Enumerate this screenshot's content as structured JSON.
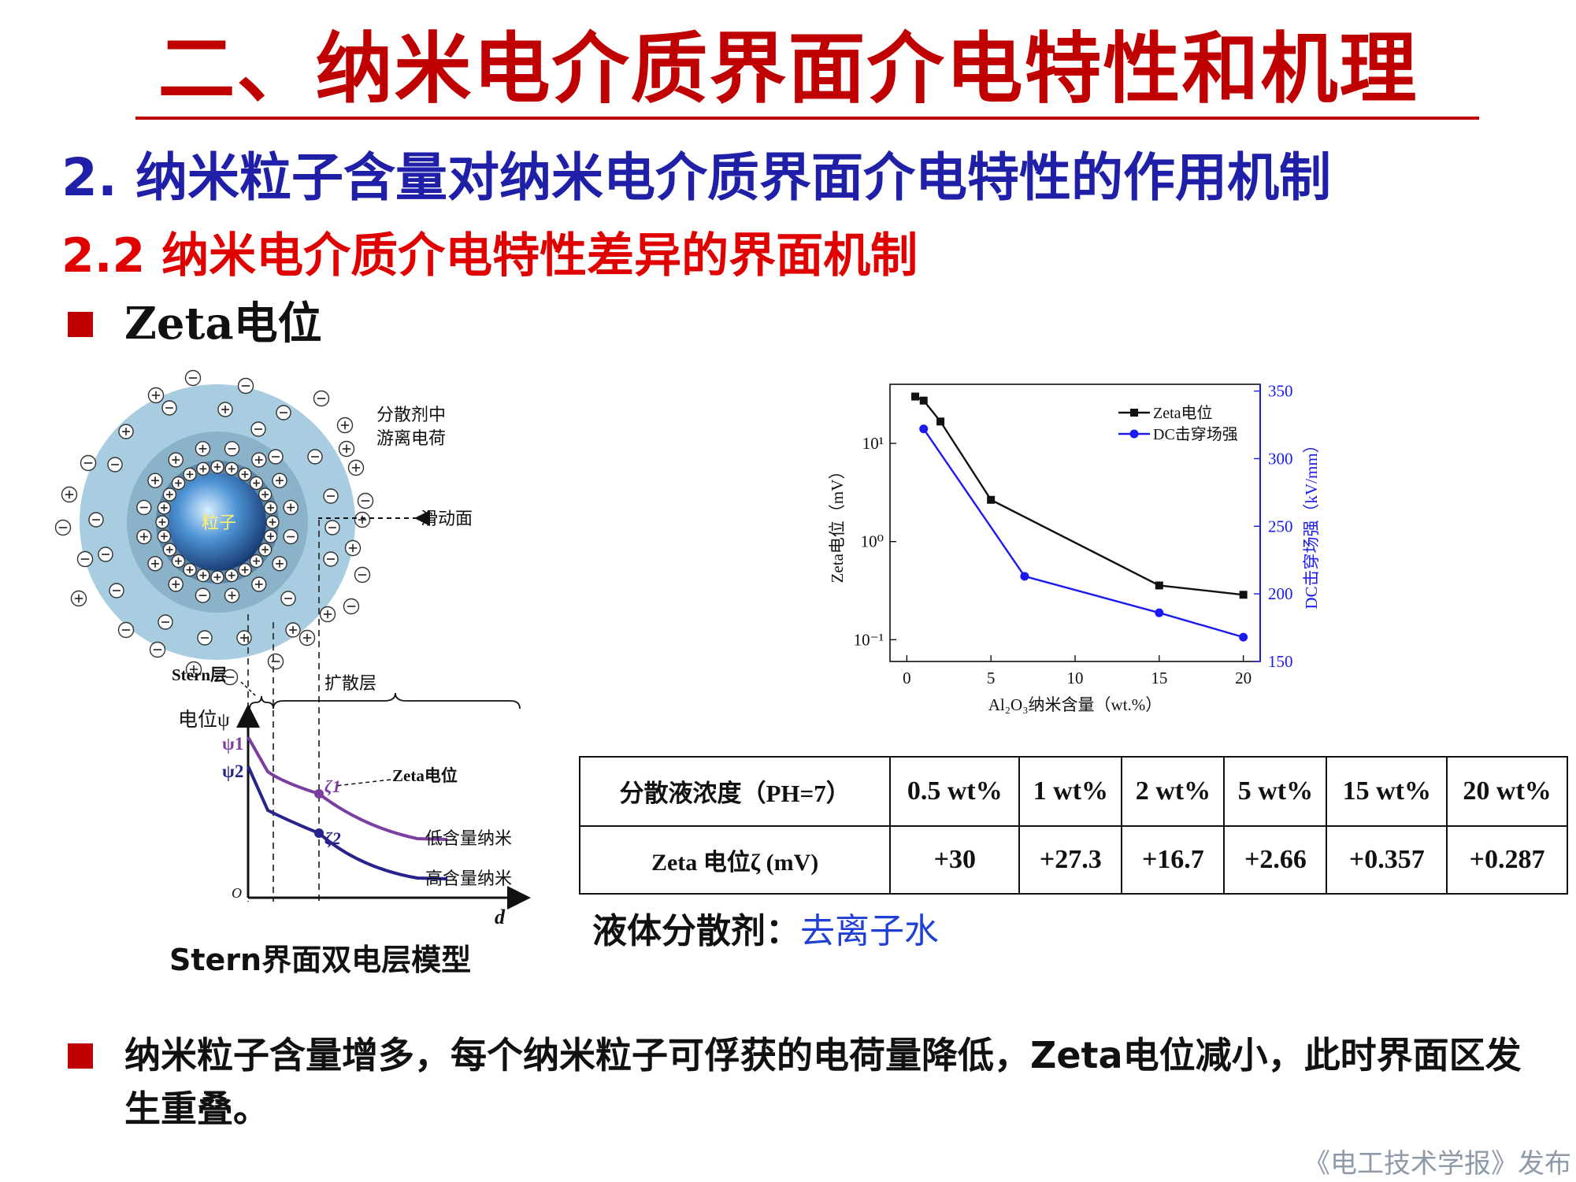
{
  "title": "二、纳米电介质界面介电特性和机理",
  "section_heading": "2. 纳米粒子含量对纳米电介质界面介电特性的作用机制",
  "subsection_heading": "2.2 纳米电介质介电特性差异的界面机制",
  "bullet1": "Zeta电位",
  "stern_diagram": {
    "particle_label": "粒子",
    "free_charge_label_line1": "分散剂中",
    "free_charge_label_line2": "游离电荷",
    "slip_plane_label": "滑动面",
    "stern_layer_label": "Stern层",
    "diffuse_layer_label": "扩散层",
    "potential_axis_label": "电位ψ",
    "psi1": "ψ1",
    "psi2": "ψ2",
    "zeta_label": "Zeta电位",
    "zeta1": "ζ1",
    "zeta2": "ζ2",
    "low_content_label": "低含量纳米",
    "high_content_label": "高含量纳米",
    "origin_label": "O",
    "d_label": "d",
    "caption": "Stern界面双电层模型"
  },
  "chart_data": {
    "type": "line",
    "x_label": "Al₂O₃纳米含量（wt.%）",
    "y_left_label": "Zeta电位（mV）",
    "y_right_label": "DC击穿场强（kV/mm）",
    "x_ticks": [
      "0",
      "5",
      "10",
      "15",
      "20"
    ],
    "xlim": [
      -1,
      21
    ],
    "y_left_scale": "log",
    "y_left_ticks": [
      0.1,
      1,
      10
    ],
    "y_left_tick_labels": [
      "10⁻¹",
      "10⁰",
      "10¹"
    ],
    "y_left_lim": [
      0.06,
      40
    ],
    "y_right_ticks": [
      "150",
      "200",
      "250",
      "300",
      "350"
    ],
    "y_right_lim": [
      150,
      355
    ],
    "legend_position": "top-right",
    "series": [
      {
        "name": "Zeta电位",
        "axis": "left",
        "color": "#111111",
        "marker": "square",
        "x": [
          0.5,
          1,
          2,
          5,
          15,
          20
        ],
        "y": [
          30,
          27.3,
          16.7,
          2.66,
          0.357,
          0.287
        ]
      },
      {
        "name": "DC击穿场强",
        "axis": "right",
        "color": "#1a1af0",
        "marker": "circle",
        "x": [
          1,
          7,
          15,
          20
        ],
        "y": [
          322,
          213,
          186,
          168
        ]
      }
    ]
  },
  "table": {
    "headers": [
      "分散液浓度（PH=7）",
      "0.5 wt%",
      "1 wt%",
      "2 wt%",
      "5 wt%",
      "15 wt%",
      "20 wt%"
    ],
    "row_label": "Zeta 电位ζ (mV)",
    "values": [
      "+30",
      "+27.3",
      "+16.7",
      "+2.66",
      "+0.357",
      "+0.287"
    ]
  },
  "solvent_label": "液体分散剂：",
  "solvent_value": "去离子水",
  "bullet2": "纳米粒子含量增多，每个纳米粒子可俘获的电荷量降低，Zeta电位减小，此时界面区发生重叠。",
  "footer": "《电工技术学报》发布",
  "colors": {
    "title_red": "#c00000",
    "heading_blue": "#1f1fa8",
    "subheading_red": "#e00000",
    "series_blue": "#1a1af0",
    "curve_purple": "#7a3fa0",
    "curve_navy": "#26238a"
  }
}
